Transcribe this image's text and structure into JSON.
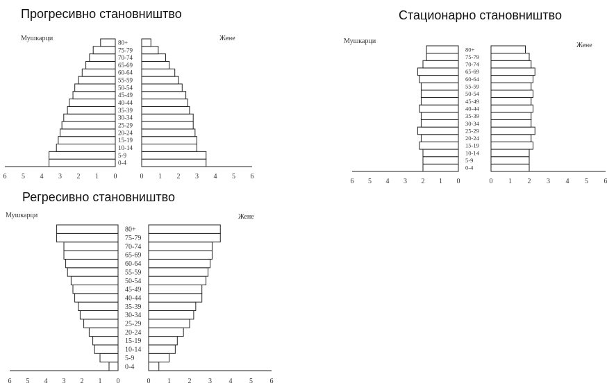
{
  "chart_data": [
    {
      "type": "bar",
      "orientation": "horizontal",
      "title": "Прогресивно становништво",
      "categories": [
        "0-4",
        "5-9",
        "10-14",
        "15-19",
        "20-24",
        "25-29",
        "30-34",
        "35-39",
        "40-44",
        "45-49",
        "50-54",
        "55-59",
        "60-64",
        "65-69",
        "70-74",
        "75-79",
        "80+"
      ],
      "series": [
        {
          "name": "Мушкарци",
          "values": [
            3.6,
            3.6,
            3.2,
            3.1,
            3.0,
            2.9,
            2.8,
            2.6,
            2.5,
            2.3,
            2.2,
            2.0,
            1.8,
            1.6,
            1.4,
            1.2,
            0.8
          ]
        },
        {
          "name": "Жене",
          "values": [
            3.5,
            3.5,
            3.0,
            3.0,
            2.9,
            2.8,
            2.8,
            2.6,
            2.5,
            2.4,
            2.2,
            2.0,
            1.8,
            1.5,
            1.3,
            0.9,
            0.5
          ]
        }
      ],
      "xlim": [
        0,
        6
      ],
      "ticks": [
        "6",
        "5",
        "4",
        "3",
        "2",
        "1",
        "0",
        "0",
        "1",
        "2",
        "3",
        "4",
        "5",
        "6"
      ]
    },
    {
      "type": "bar",
      "orientation": "horizontal",
      "title": "Стационарно становништво",
      "categories": [
        "0-4",
        "5-9",
        "10-14",
        "15-19",
        "20-24",
        "25-29",
        "30-34",
        "35-39",
        "40-44",
        "45-49",
        "50-54",
        "55-59",
        "60-64",
        "65-69",
        "70-74",
        "75-79",
        "80+"
      ],
      "series": [
        {
          "name": "Мушкарци",
          "values": [
            2.0,
            2.0,
            2.0,
            2.2,
            2.1,
            2.3,
            2.1,
            2.1,
            2.2,
            2.1,
            2.1,
            2.1,
            2.2,
            2.3,
            2.0,
            1.8,
            1.8
          ]
        },
        {
          "name": "Жене",
          "values": [
            2.0,
            2.0,
            2.0,
            2.2,
            2.1,
            2.3,
            2.1,
            2.1,
            2.2,
            2.1,
            2.2,
            2.1,
            2.2,
            2.3,
            2.1,
            2.0,
            1.8
          ]
        }
      ],
      "xlim": [
        0,
        6
      ],
      "ticks": [
        "6",
        "5",
        "4",
        "3",
        "2",
        "1",
        "0",
        "0",
        "1",
        "2",
        "3",
        "4",
        "5",
        "6"
      ]
    },
    {
      "type": "bar",
      "orientation": "horizontal",
      "title": "Регресивно становништво",
      "categories": [
        "0-4",
        "5-9",
        "10-14",
        "15-19",
        "20-24",
        "25-29",
        "30-34",
        "35-39",
        "40-44",
        "45-49",
        "50-54",
        "55-59",
        "60-64",
        "65-69",
        "70-74",
        "75-79",
        "80+"
      ],
      "series": [
        {
          "name": "Мушкарци",
          "values": [
            0.5,
            1.0,
            1.3,
            1.4,
            1.6,
            1.9,
            2.1,
            2.2,
            2.4,
            2.5,
            2.6,
            2.8,
            2.9,
            3.0,
            3.0,
            3.4,
            3.4
          ]
        },
        {
          "name": "Жене",
          "values": [
            0.5,
            1.0,
            1.3,
            1.4,
            1.7,
            2.0,
            2.2,
            2.3,
            2.6,
            2.6,
            2.8,
            2.9,
            3.0,
            3.1,
            3.1,
            3.5,
            3.5
          ]
        }
      ],
      "xlim": [
        0,
        6
      ],
      "ticks": [
        "6",
        "5",
        "4",
        "3",
        "2",
        "1",
        "0",
        "0",
        "1",
        "2",
        "3",
        "4",
        "5",
        "6"
      ]
    }
  ]
}
